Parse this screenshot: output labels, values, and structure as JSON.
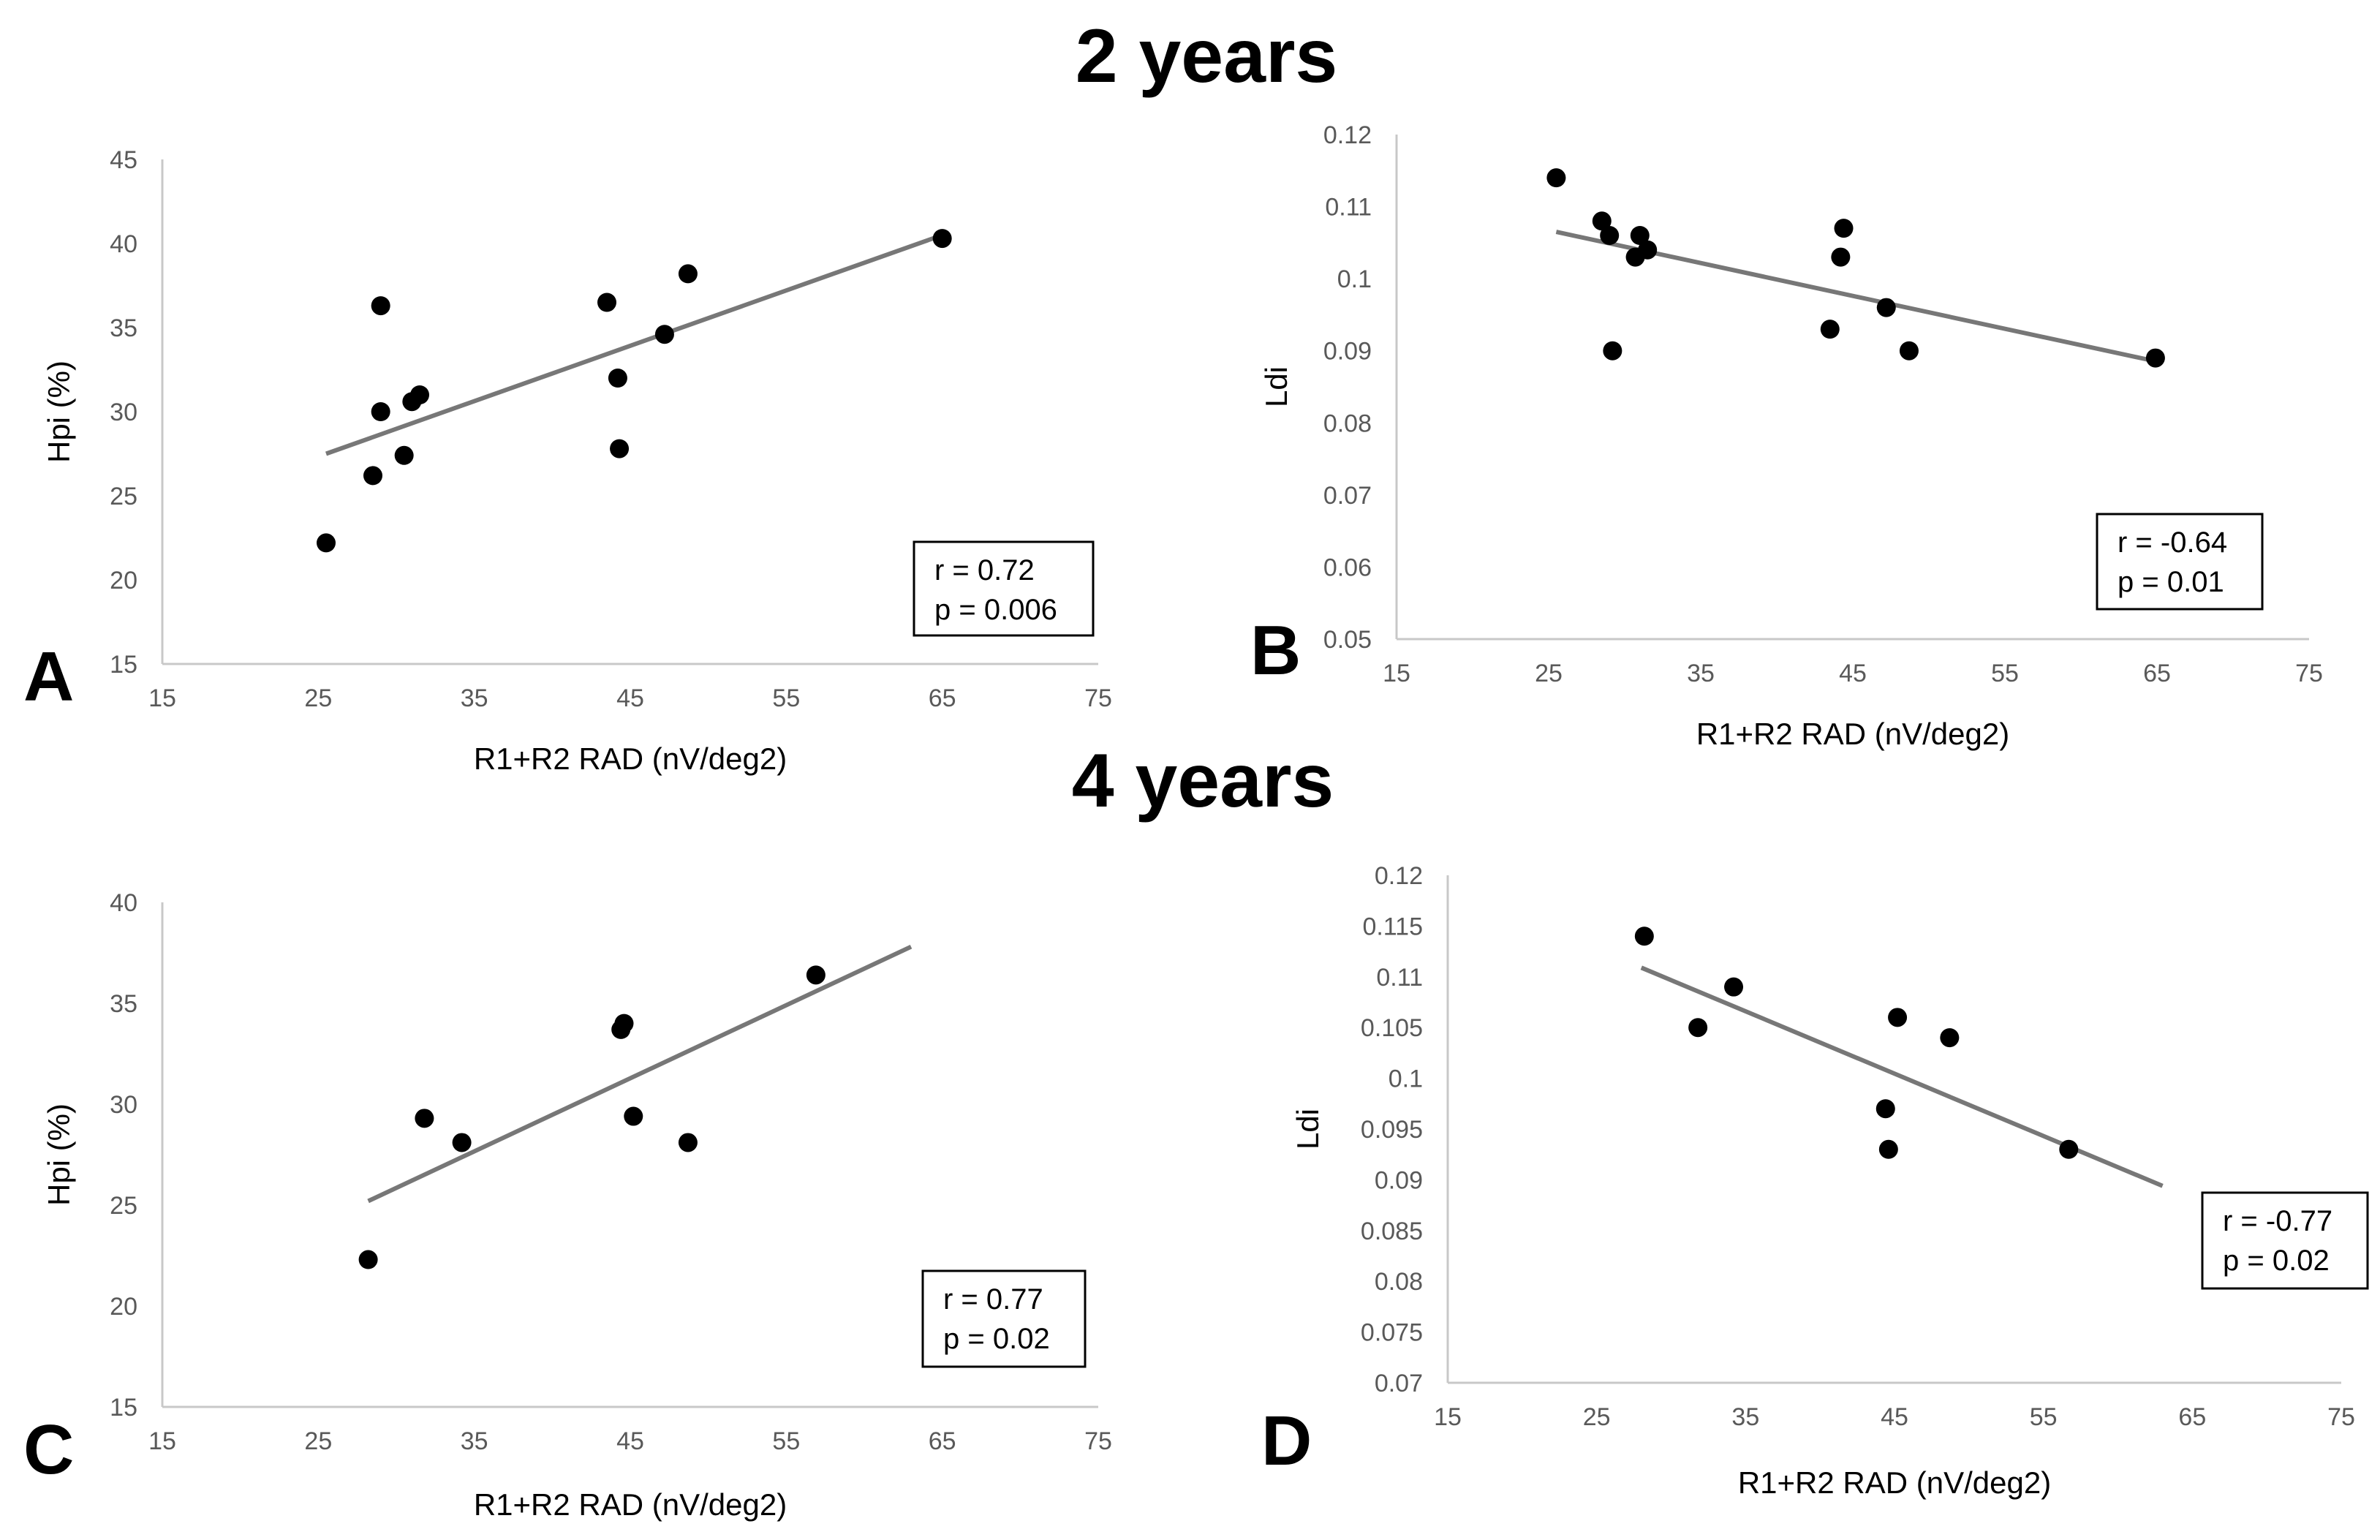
{
  "titles": {
    "top": "2 years",
    "bottom": "4 years"
  },
  "colors": {
    "points": "#000000",
    "trendline": "#777777",
    "axis": "#c8c8c8",
    "tick_text": "#595959"
  },
  "chart_data": [
    {
      "id": "A",
      "panel_label": "A",
      "type": "scatter",
      "xlabel": "R1+R2 RAD (nV/deg2)",
      "ylabel": "Hpi (%)",
      "xlim": [
        15,
        75
      ],
      "ylim": [
        15,
        45
      ],
      "xticks": [
        "15",
        "25",
        "35",
        "45",
        "55",
        "65",
        "75"
      ],
      "yticks": [
        "15",
        "20",
        "25",
        "30",
        "35",
        "40",
        "45"
      ],
      "points": [
        [
          25.5,
          22.2
        ],
        [
          28.5,
          26.2
        ],
        [
          29,
          36.3
        ],
        [
          29,
          30
        ],
        [
          30.5,
          27.4
        ],
        [
          31,
          30.6
        ],
        [
          31.5,
          31
        ],
        [
          43.5,
          36.5
        ],
        [
          44.2,
          32
        ],
        [
          44.3,
          27.8
        ],
        [
          47.2,
          34.6
        ],
        [
          48.7,
          38.2
        ],
        [
          65,
          40.3
        ]
      ],
      "trendline": [
        [
          25.5,
          27.5
        ],
        [
          65,
          40.5
        ]
      ],
      "stat_r": "r = 0.72",
      "stat_p": "p = 0.006",
      "grid": false,
      "stats_placement": "bottom-right"
    },
    {
      "id": "B",
      "panel_label": "B",
      "type": "scatter",
      "xlabel": "R1+R2 RAD (nV/deg2)",
      "ylabel": "Ldi",
      "xlim": [
        15,
        75
      ],
      "ylim": [
        0.05,
        0.12
      ],
      "xticks": [
        "15",
        "25",
        "35",
        "45",
        "55",
        "65",
        "75"
      ],
      "yticks": [
        "0.05",
        "0.06",
        "0.07",
        "0.08",
        "0.09",
        "0.1",
        "0.11",
        "0.12"
      ],
      "points": [
        [
          25.5,
          0.114
        ],
        [
          28.5,
          0.108
        ],
        [
          29,
          0.106
        ],
        [
          29.2,
          0.09
        ],
        [
          30.7,
          0.103
        ],
        [
          31,
          0.106
        ],
        [
          31.5,
          0.104
        ],
        [
          43.5,
          0.093
        ],
        [
          44.2,
          0.103
        ],
        [
          44.4,
          0.107
        ],
        [
          47.2,
          0.096
        ],
        [
          48.7,
          0.09
        ],
        [
          64.9,
          0.089
        ]
      ],
      "trendline": [
        [
          25.5,
          0.1065
        ],
        [
          65,
          0.0885
        ]
      ],
      "stat_r": "r = -0.64",
      "stat_p": "p = 0.01",
      "grid": false,
      "stats_placement": "bottom-right"
    },
    {
      "id": "C",
      "panel_label": "C",
      "type": "scatter",
      "xlabel": "R1+R2 RAD (nV/deg2)",
      "ylabel": "Hpi (%)",
      "xlim": [
        15,
        75
      ],
      "ylim": [
        15,
        40
      ],
      "xticks": [
        "15",
        "25",
        "35",
        "45",
        "55",
        "65",
        "75"
      ],
      "yticks": [
        "15",
        "20",
        "25",
        "30",
        "35",
        "40"
      ],
      "points": [
        [
          28.2,
          22.3
        ],
        [
          31.8,
          29.3
        ],
        [
          34.2,
          28.1
        ],
        [
          44.4,
          33.7
        ],
        [
          44.6,
          34.0
        ],
        [
          45.2,
          29.4
        ],
        [
          48.7,
          28.1
        ],
        [
          56.9,
          36.4
        ]
      ],
      "trendline": [
        [
          28.2,
          25.2
        ],
        [
          63,
          37.8
        ]
      ],
      "stat_r": "r = 0.77",
      "stat_p": "p = 0.02",
      "grid": false,
      "stats_placement": "bottom-right"
    },
    {
      "id": "D",
      "panel_label": "D",
      "type": "scatter",
      "xlabel": "R1+R2 RAD (nV/deg2)",
      "ylabel": "Ldi",
      "xlim": [
        15,
        75
      ],
      "ylim": [
        0.07,
        0.12
      ],
      "xticks": [
        "15",
        "25",
        "35",
        "45",
        "55",
        "65",
        "75"
      ],
      "yticks": [
        "0.07",
        "0.075",
        "0.08",
        "0.085",
        "0.09",
        "0.095",
        "0.1",
        "0.105",
        "0.11",
        "0.115",
        "0.12"
      ],
      "points": [
        [
          28.2,
          0.114
        ],
        [
          31.8,
          0.105
        ],
        [
          34.2,
          0.109
        ],
        [
          44.4,
          0.097
        ],
        [
          44.6,
          0.093
        ],
        [
          45.2,
          0.106
        ],
        [
          48.7,
          0.104
        ],
        [
          56.7,
          0.093
        ]
      ],
      "trendline": [
        [
          28,
          0.1109
        ],
        [
          63,
          0.0894
        ]
      ],
      "stat_r": "r = -0.77",
      "stat_p": "p = 0.02",
      "grid": false,
      "stats_placement": "bottom-right"
    }
  ]
}
